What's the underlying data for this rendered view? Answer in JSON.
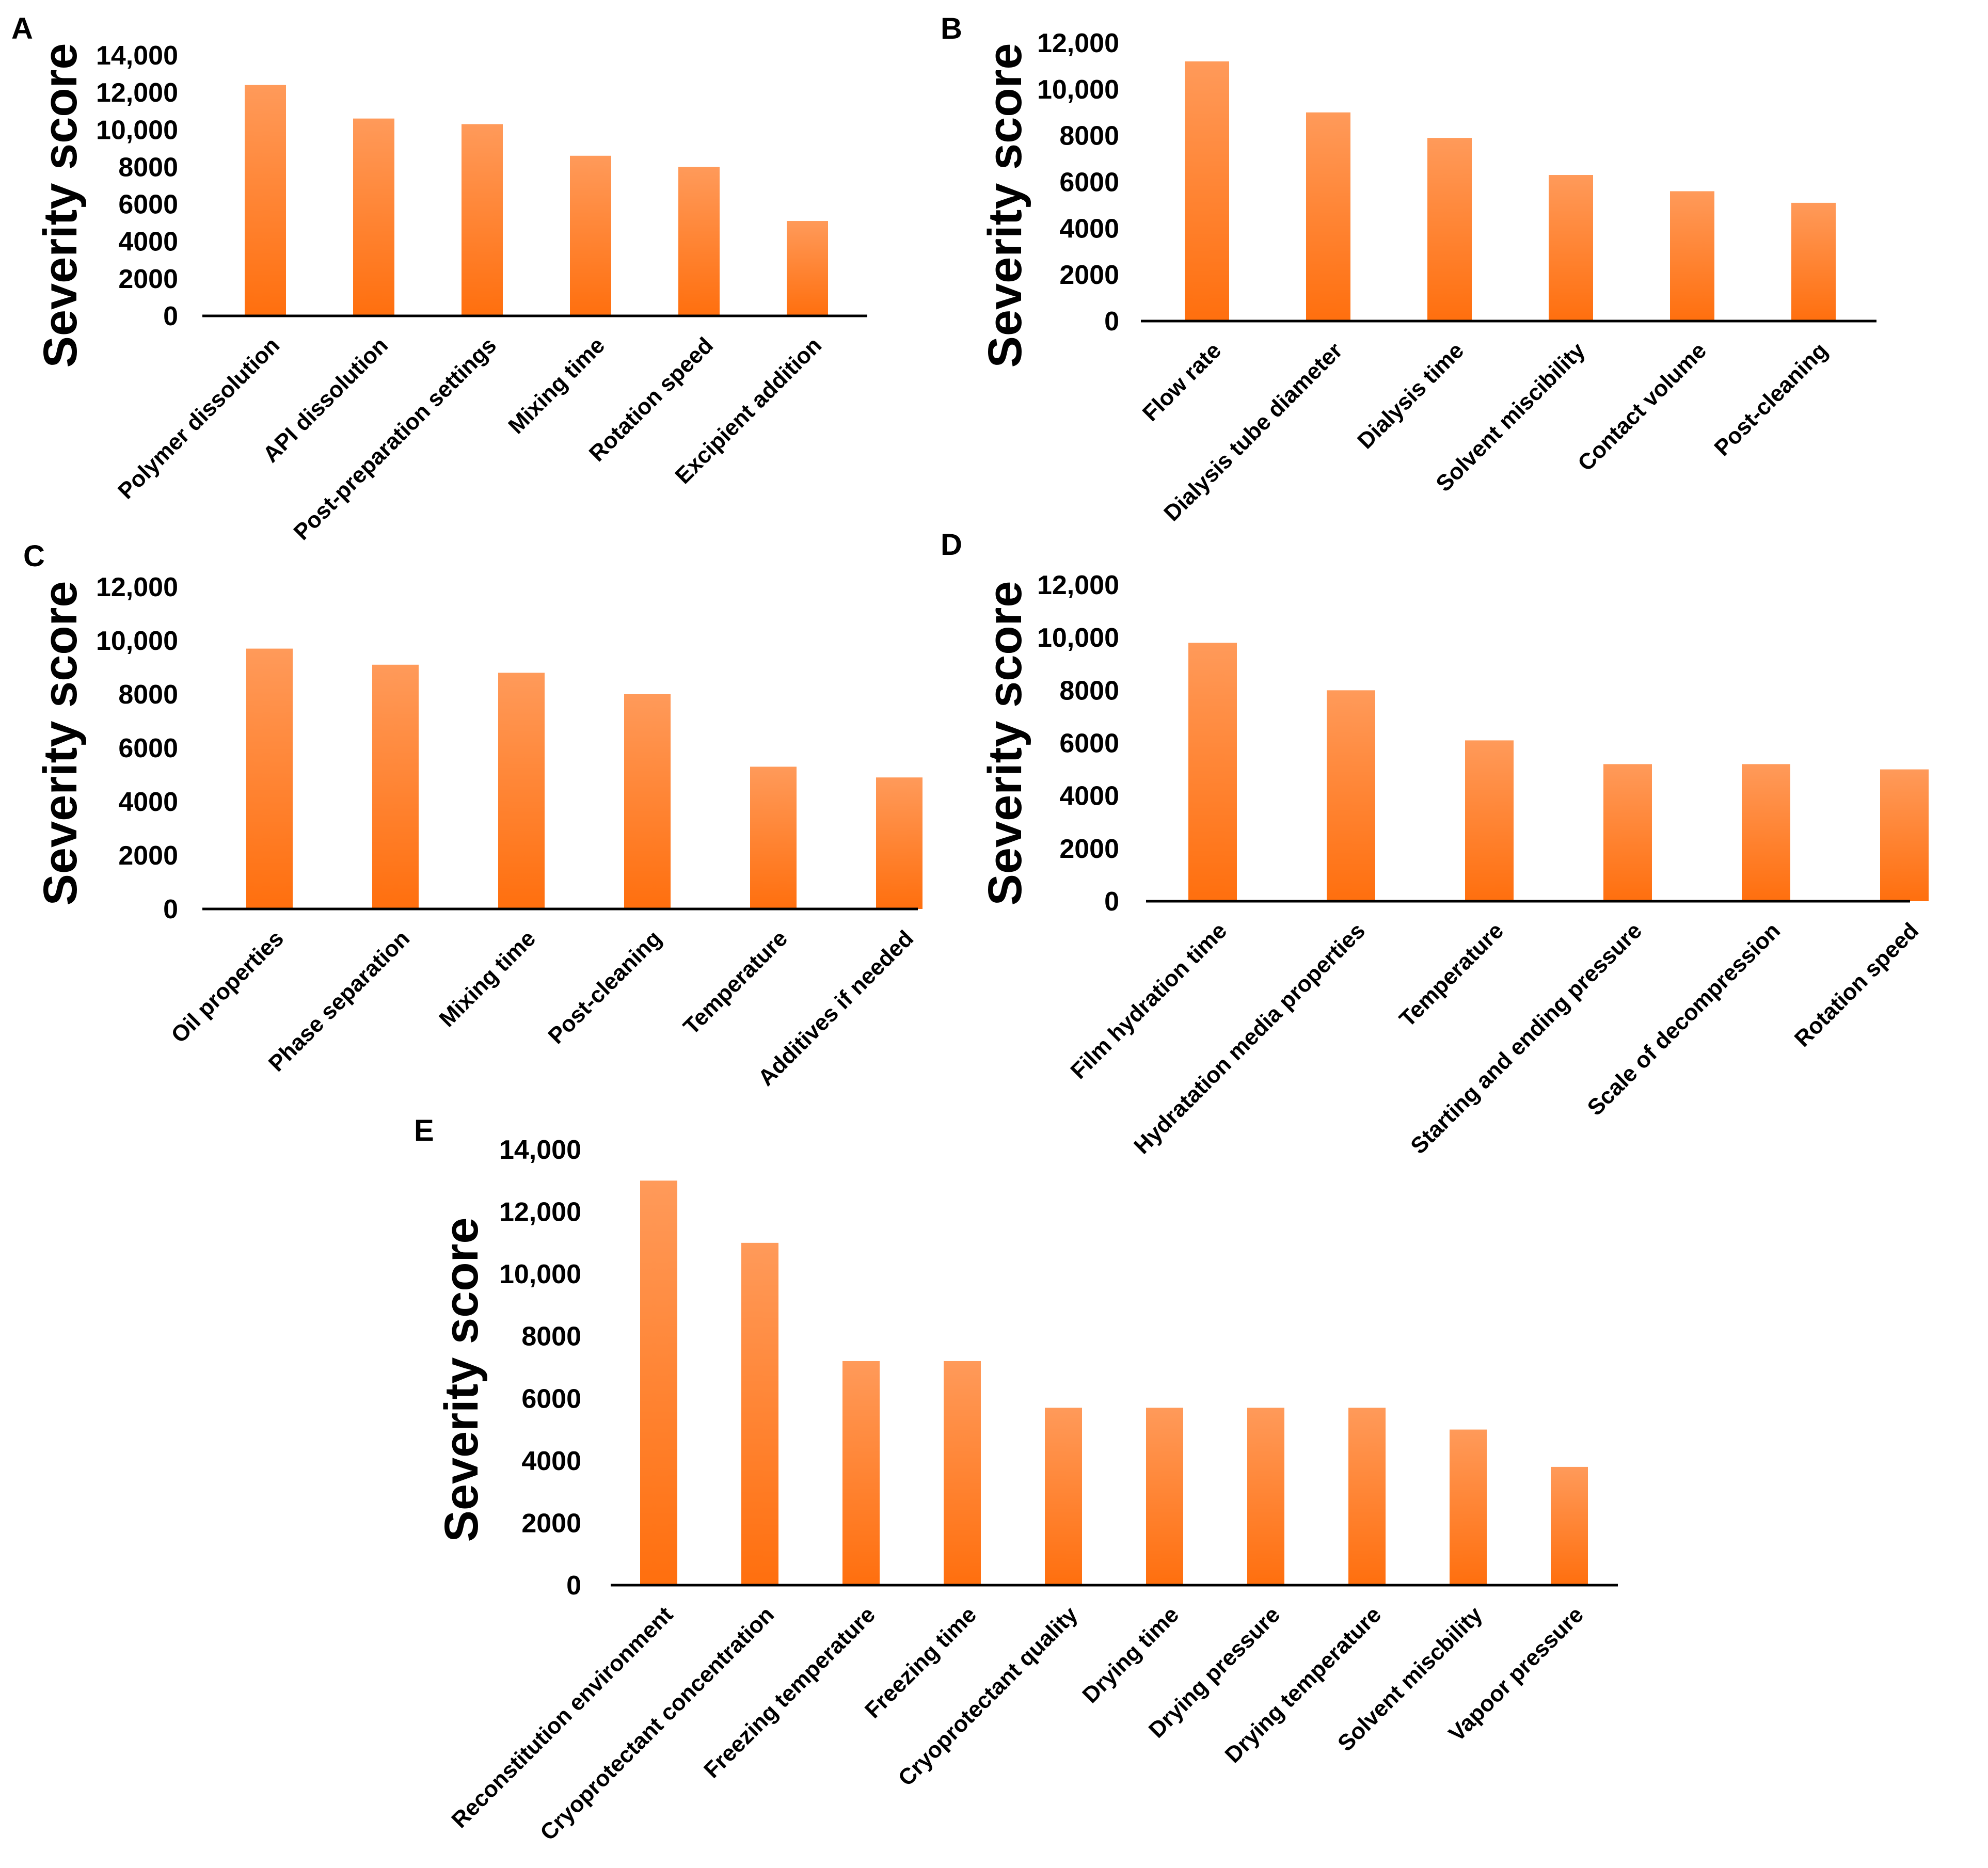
{
  "figure": {
    "colors": {
      "bar_top": "#ff9a5a",
      "bar_bottom": "#ff6f0e",
      "axis": "#000000"
    }
  },
  "chart_data": [
    {
      "panel": "A",
      "type": "bar",
      "title": "",
      "xlabel": "",
      "ylabel": "Severity score",
      "ylim": [
        0,
        14000
      ],
      "yticks": [
        0,
        2000,
        4000,
        6000,
        8000,
        10000,
        12000,
        14000
      ],
      "ytick_labels": [
        "0",
        "2000",
        "4000",
        "6000",
        "8000",
        "10,000",
        "12,000",
        "14,000"
      ],
      "categories": [
        "Polymer dissolution",
        "API dissolution",
        "Post-preparation settings",
        "Mixing time",
        "Rotation speed",
        "Excipient addition"
      ],
      "values": [
        12400,
        10600,
        10300,
        8600,
        8000,
        5100
      ]
    },
    {
      "panel": "B",
      "type": "bar",
      "title": "",
      "xlabel": "",
      "ylabel": "Severity score",
      "ylim": [
        0,
        12000
      ],
      "yticks": [
        0,
        2000,
        4000,
        6000,
        8000,
        10000,
        12000
      ],
      "ytick_labels": [
        "0",
        "2000",
        "4000",
        "6000",
        "8000",
        "10,000",
        "12,000"
      ],
      "categories": [
        "Flow rate",
        "Dialysis tube diameter",
        "Dialysis time",
        "Solvent miscibility",
        "Contact volume",
        "Post-cleaning"
      ],
      "values": [
        11200,
        9000,
        7900,
        6300,
        5600,
        5100
      ]
    },
    {
      "panel": "C",
      "type": "bar",
      "title": "",
      "xlabel": "",
      "ylabel": "Severity score",
      "ylim": [
        0,
        12000
      ],
      "yticks": [
        0,
        2000,
        4000,
        6000,
        8000,
        10000,
        12000
      ],
      "ytick_labels": [
        "0",
        "2000",
        "4000",
        "6000",
        "8000",
        "10,000",
        "12,000"
      ],
      "categories": [
        "Oil properties",
        "Phase separation",
        "Mixing time",
        "Post-cleaning",
        "Temperature",
        "Additives if needed"
      ],
      "values": [
        9700,
        9100,
        8800,
        8000,
        5300,
        4900
      ]
    },
    {
      "panel": "D",
      "type": "bar",
      "title": "",
      "xlabel": "",
      "ylabel": "Severity score",
      "ylim": [
        0,
        12000
      ],
      "yticks": [
        0,
        2000,
        4000,
        6000,
        8000,
        10000,
        12000
      ],
      "ytick_labels": [
        "0",
        "2000",
        "4000",
        "6000",
        "8000",
        "10,000",
        "12,000"
      ],
      "categories": [
        "Film hydration time",
        "Hydratation media properties",
        "Temperature",
        "Starting and ending pressure",
        "Scale of decompression",
        "Rotation speed"
      ],
      "values": [
        9800,
        8000,
        6100,
        5200,
        5200,
        5000
      ]
    },
    {
      "panel": "E",
      "type": "bar",
      "title": "",
      "xlabel": "",
      "ylabel": "Severity score",
      "ylim": [
        0,
        14000
      ],
      "yticks": [
        0,
        2000,
        4000,
        6000,
        8000,
        10000,
        12000,
        14000
      ],
      "ytick_labels": [
        "0",
        "2000",
        "4000",
        "6000",
        "8000",
        "10,000",
        "12,000",
        "14,000"
      ],
      "categories": [
        "Reconstitution environment",
        "Cryoprotectant concentration",
        "Freezing temperature",
        "Freezing time",
        "Cryoprotectant quality",
        "Drying time",
        "Drying pressure",
        "Drying temperature",
        "Solvent miscbility",
        "Vapoor pressure"
      ],
      "values": [
        13000,
        11000,
        7200,
        7200,
        5700,
        5700,
        5700,
        5700,
        5000,
        3800
      ]
    }
  ]
}
